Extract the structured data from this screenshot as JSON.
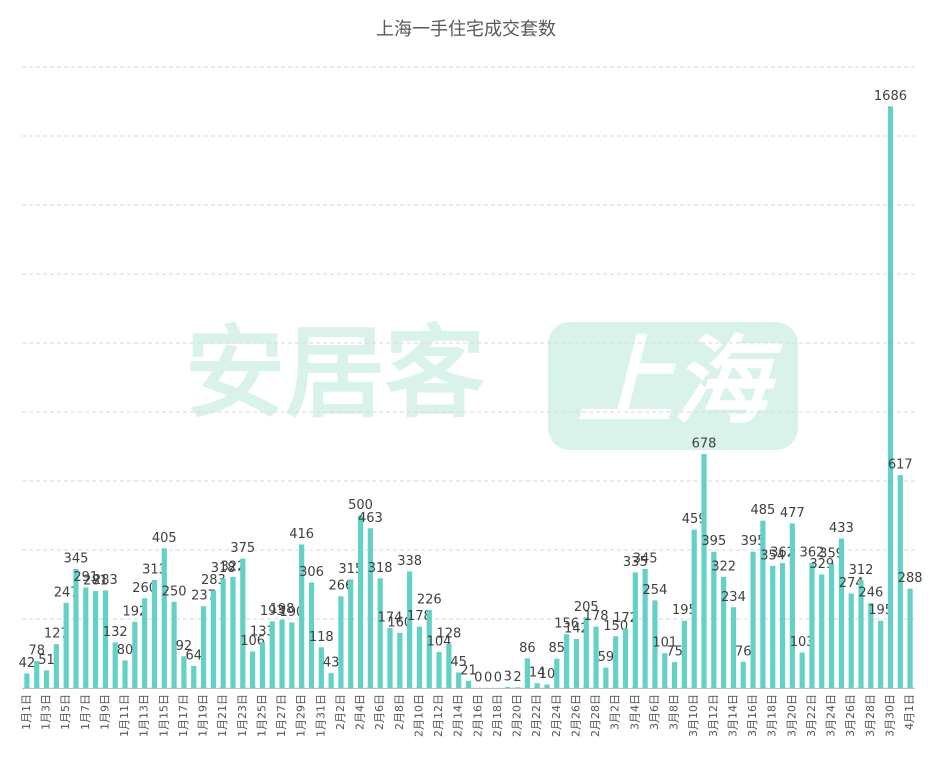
{
  "chart_data": {
    "type": "bar",
    "title": "上海一手住宅成交套数",
    "watermark": [
      "安居客",
      "上海"
    ],
    "color": "#63d1c6",
    "grid": true,
    "ylim": [
      0,
      1800
    ],
    "yticks": [
      0,
      200,
      400,
      600,
      800,
      1000,
      1200,
      1400,
      1600,
      1800
    ],
    "categories": [
      "1月1日",
      null,
      "1月3日",
      null,
      "1月5日",
      null,
      "1月7日",
      null,
      "1月9日",
      null,
      "1月11日",
      null,
      "1月13日",
      null,
      "1月15日",
      null,
      "1月17日",
      null,
      "1月19日",
      null,
      "1月21日",
      null,
      "1月23日",
      null,
      "1月25日",
      null,
      "1月27日",
      null,
      "1月29日",
      null,
      "1月31日",
      null,
      "2月2日",
      null,
      "2月4日",
      null,
      "2月6日",
      null,
      "2月8日",
      null,
      "2月10日",
      null,
      "2月12日",
      null,
      "2月14日",
      null,
      "2月16日",
      null,
      "2月18日",
      null,
      "2月20日",
      null,
      "2月22日",
      null,
      "2月24日",
      null,
      "2月26日",
      null,
      "2月28日",
      null,
      "3月2日",
      null,
      "3月4日",
      null,
      "3月6日",
      null,
      "3月8日",
      null,
      "3月10日",
      null,
      "3月12日",
      null,
      "3月14日",
      null,
      "3月16日",
      null,
      "3月18日",
      null,
      "3月20日",
      null,
      "3月22日",
      null,
      "3月24日",
      null,
      "3月26日",
      null,
      "3月28日",
      null,
      "3月30日",
      null,
      "4月1日"
    ],
    "values": [
      42,
      78,
      51,
      127,
      247,
      345,
      291,
      281,
      283,
      132,
      80,
      192,
      260,
      313,
      405,
      250,
      92,
      64,
      237,
      283,
      318,
      322,
      375,
      106,
      133,
      193,
      198,
      190,
      416,
      306,
      118,
      43,
      266,
      315,
      500,
      463,
      318,
      174,
      160,
      338,
      178,
      226,
      104,
      128,
      45,
      21,
      0,
      0,
      0,
      3,
      2,
      86,
      14,
      10,
      85,
      156,
      142,
      205,
      178,
      59,
      150,
      172,
      335,
      345,
      254,
      101,
      75,
      195,
      459,
      678,
      395,
      322,
      234,
      76,
      395,
      485,
      354,
      362,
      477,
      103,
      362,
      329,
      359,
      433,
      274,
      312,
      246,
      195,
      1686,
      617,
      288
    ]
  }
}
